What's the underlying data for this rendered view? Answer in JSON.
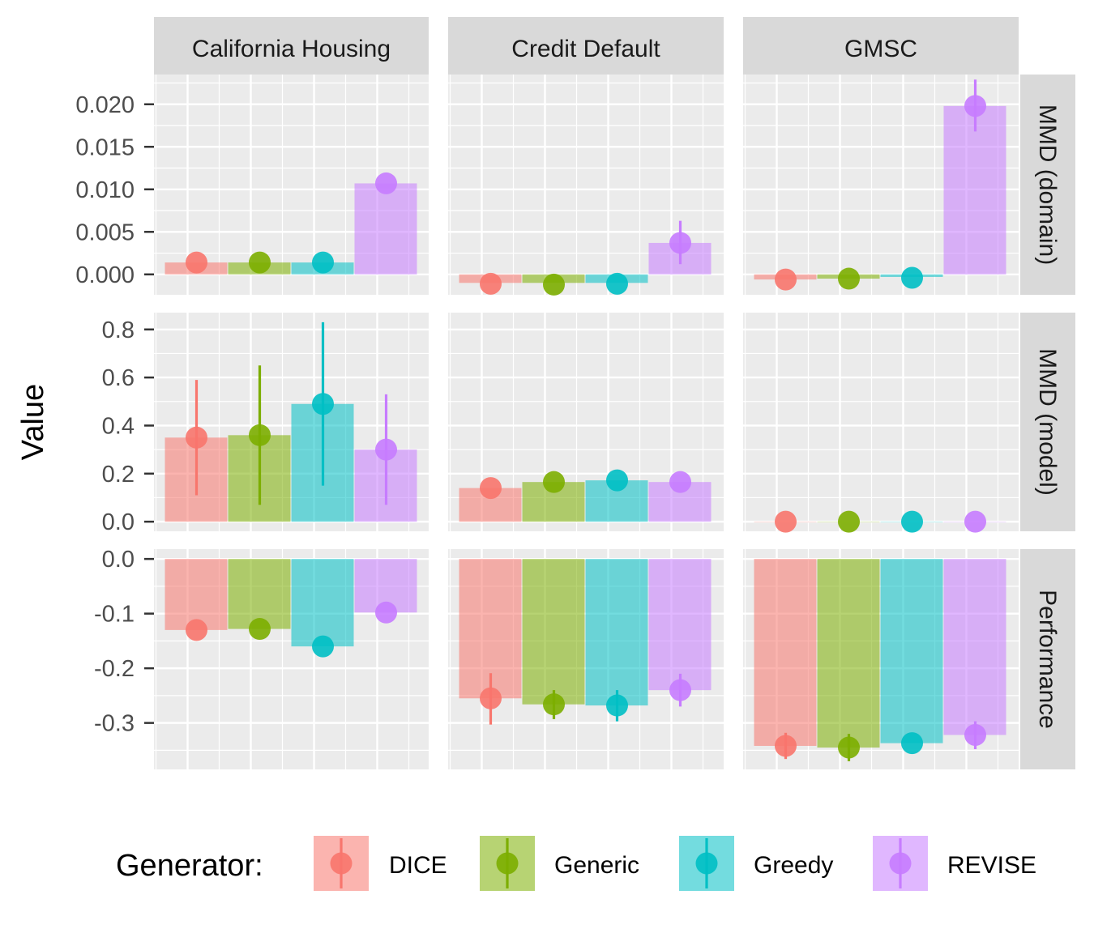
{
  "chart_data": {
    "type": "bar",
    "ylabel": "Value",
    "legend": {
      "title": "Generator:",
      "placement": "bottom"
    },
    "generators": [
      "DICE",
      "Generic",
      "Greedy",
      "REVISE"
    ],
    "colors": {
      "DICE": "#F8766D",
      "Generic": "#7CAE00",
      "Greedy": "#00BFC4",
      "REVISE": "#C77CFF"
    },
    "columns": [
      "California Housing",
      "Credit Default",
      "GMSC"
    ],
    "rows": [
      {
        "label": "MMD (domain)",
        "ylim": [
          -0.0024,
          0.0235
        ],
        "ticks": [
          0.0,
          0.005,
          0.01,
          0.015,
          0.02
        ],
        "tick_labels": [
          "0.000",
          "0.005",
          "0.010",
          "0.015",
          "0.020"
        ],
        "panels": [
          {
            "bars": [
              0.0014,
              0.0014,
              0.0014,
              0.0107
            ],
            "points": [
              0.0014,
              0.0014,
              0.0014,
              0.0107
            ],
            "errors": [
              null,
              null,
              null,
              null
            ]
          },
          {
            "bars": [
              -0.001,
              -0.001,
              -0.001,
              0.0037
            ],
            "points": [
              -0.0011,
              -0.0012,
              -0.0011,
              0.0037
            ],
            "errors": [
              null,
              null,
              null,
              [
                0.0012,
                0.0063
              ]
            ]
          },
          {
            "bars": [
              -0.0006,
              -0.0005,
              -0.0003,
              0.0198
            ],
            "points": [
              -0.0006,
              -0.0005,
              -0.0004,
              0.0198
            ],
            "errors": [
              null,
              null,
              null,
              [
                0.0168,
                0.0229
              ]
            ]
          }
        ]
      },
      {
        "label": "MMD (model)",
        "ylim": [
          -0.04,
          0.87
        ],
        "ticks": [
          0.0,
          0.2,
          0.4,
          0.6,
          0.8
        ],
        "tick_labels": [
          "0.0",
          "0.2",
          "0.4",
          "0.6",
          "0.8"
        ],
        "panels": [
          {
            "bars": [
              0.35,
              0.36,
              0.49,
              0.3
            ],
            "points": [
              0.35,
              0.36,
              0.49,
              0.3
            ],
            "errors": [
              [
                0.11,
                0.59
              ],
              [
                0.07,
                0.65
              ],
              [
                0.15,
                0.83
              ],
              [
                0.07,
                0.53
              ]
            ]
          },
          {
            "bars": [
              0.14,
              0.165,
              0.172,
              0.165
            ],
            "points": [
              0.14,
              0.165,
              0.172,
              0.165
            ],
            "errors": [
              null,
              null,
              null,
              null
            ]
          },
          {
            "bars": [
              0.0,
              0.0,
              0.0,
              0.0
            ],
            "points": [
              0.0,
              0.0,
              0.0,
              0.0
            ],
            "errors": [
              null,
              null,
              null,
              null
            ]
          }
        ]
      },
      {
        "label": "Performance",
        "ylim": [
          -0.385,
          0.018
        ],
        "ticks": [
          0.0,
          -0.1,
          -0.2,
          -0.3
        ],
        "tick_labels": [
          "0.0",
          "-0.1",
          "-0.2",
          "-0.3"
        ],
        "panels": [
          {
            "bars": [
              -0.13,
              -0.128,
              -0.16,
              -0.098
            ],
            "points": [
              -0.13,
              -0.128,
              -0.16,
              -0.098
            ],
            "errors": [
              null,
              null,
              null,
              null
            ]
          },
          {
            "bars": [
              -0.255,
              -0.266,
              -0.268,
              -0.24
            ],
            "points": [
              -0.255,
              -0.266,
              -0.268,
              -0.24
            ],
            "errors": [
              [
                -0.303,
                -0.209
              ],
              [
                -0.293,
                -0.24
              ],
              [
                -0.297,
                -0.24
              ],
              [
                -0.27,
                -0.21
              ]
            ]
          },
          {
            "bars": [
              -0.342,
              -0.345,
              -0.337,
              -0.322
            ],
            "points": [
              -0.342,
              -0.345,
              -0.337,
              -0.322
            ],
            "errors": [
              [
                -0.366,
                -0.318
              ],
              [
                -0.37,
                -0.32
              ],
              null,
              [
                -0.348,
                -0.297
              ]
            ]
          }
        ]
      }
    ]
  }
}
